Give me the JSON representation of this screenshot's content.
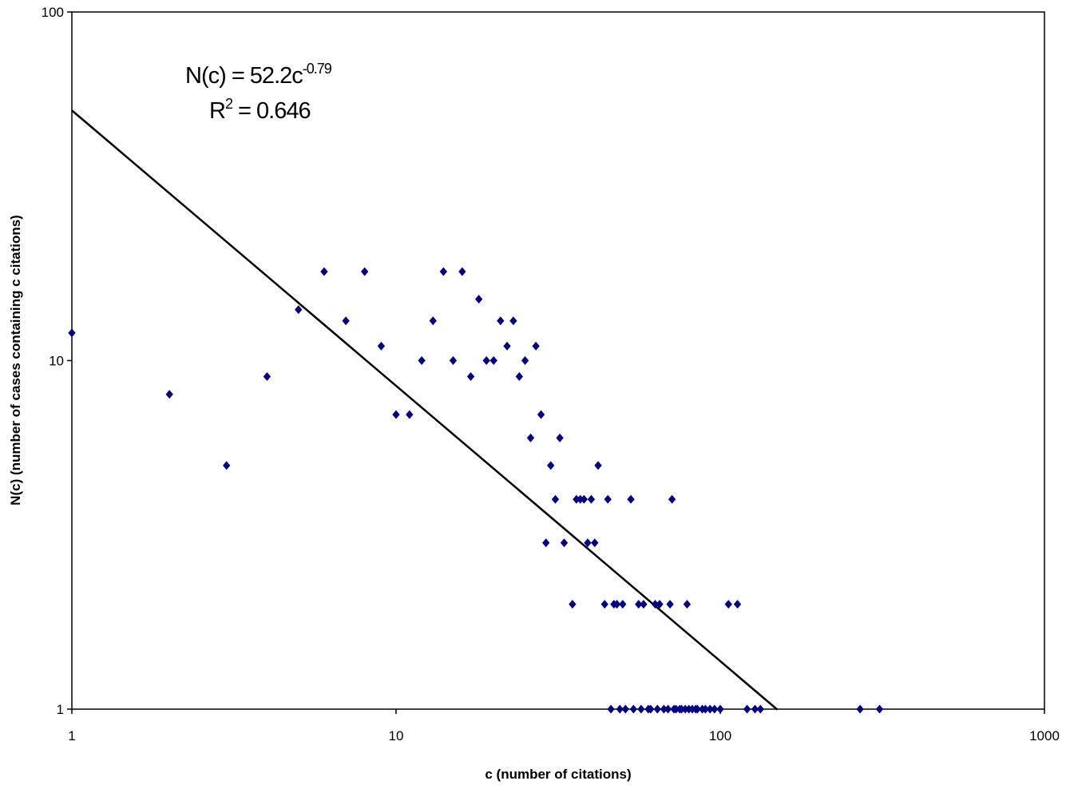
{
  "chart_data": {
    "type": "scatter",
    "x_scale": "log",
    "y_scale": "log",
    "xlim": [
      1,
      1000
    ],
    "ylim": [
      1,
      100
    ],
    "xticks": [
      1,
      10,
      100,
      1000
    ],
    "yticks": [
      1,
      10,
      100
    ],
    "xtick_labels": [
      "1",
      "10",
      "100",
      "1000"
    ],
    "ytick_labels": [
      "1",
      "10",
      "100"
    ],
    "xlabel": "c (number of citations)",
    "ylabel": "N(c) (number of cases containing c citations)",
    "grid": false,
    "legend": "none",
    "marker_color": "#000080",
    "trendline_color": "#000000",
    "annotation": {
      "equation_prefix": "N(c) = 52.2c",
      "equation_exponent": "-0.79",
      "r2_prefix": "R",
      "r2_superscript": "2",
      "r2_suffix": " = 0.646"
    },
    "trendline": {
      "type": "power",
      "coefficient": 52.2,
      "exponent": -0.79,
      "x_range": [
        1,
        150
      ]
    },
    "series": [
      {
        "points": [
          [
            1,
            12
          ],
          [
            2,
            8
          ],
          [
            3,
            5
          ],
          [
            4,
            9
          ],
          [
            5,
            14
          ],
          [
            6,
            18
          ],
          [
            7,
            13
          ],
          [
            8,
            18
          ],
          [
            9,
            11
          ],
          [
            10,
            7
          ],
          [
            11,
            7
          ],
          [
            12,
            10
          ],
          [
            13,
            13
          ],
          [
            14,
            18
          ],
          [
            15,
            10
          ],
          [
            16,
            18
          ],
          [
            17,
            9
          ],
          [
            18,
            15
          ],
          [
            19,
            10
          ],
          [
            20,
            10
          ],
          [
            21,
            13
          ],
          [
            22,
            11
          ],
          [
            23,
            13
          ],
          [
            24,
            9
          ],
          [
            25,
            10
          ],
          [
            26,
            6
          ],
          [
            27,
            11
          ],
          [
            28,
            7
          ],
          [
            29,
            3
          ],
          [
            30,
            5
          ],
          [
            31,
            4
          ],
          [
            32,
            6
          ],
          [
            33,
            3
          ],
          [
            35,
            2
          ],
          [
            36,
            4
          ],
          [
            37,
            4
          ],
          [
            38,
            4
          ],
          [
            39,
            3
          ],
          [
            40,
            4
          ],
          [
            41,
            3
          ],
          [
            42,
            5
          ],
          [
            44,
            2
          ],
          [
            45,
            4
          ],
          [
            46,
            1
          ],
          [
            47,
            2
          ],
          [
            48,
            2
          ],
          [
            49,
            1
          ],
          [
            50,
            2
          ],
          [
            51,
            1
          ],
          [
            53,
            4
          ],
          [
            54,
            1
          ],
          [
            56,
            2
          ],
          [
            57,
            1
          ],
          [
            58,
            2
          ],
          [
            60,
            1
          ],
          [
            61,
            1
          ],
          [
            63,
            2
          ],
          [
            64,
            1
          ],
          [
            65,
            2
          ],
          [
            67,
            1
          ],
          [
            69,
            1
          ],
          [
            70,
            2
          ],
          [
            71,
            4
          ],
          [
            72,
            1
          ],
          [
            73,
            1
          ],
          [
            75,
            1
          ],
          [
            76,
            1
          ],
          [
            78,
            1
          ],
          [
            79,
            2
          ],
          [
            80,
            1
          ],
          [
            82,
            1
          ],
          [
            84,
            1
          ],
          [
            85,
            1
          ],
          [
            88,
            1
          ],
          [
            90,
            1
          ],
          [
            93,
            1
          ],
          [
            96,
            1
          ],
          [
            100,
            1
          ],
          [
            106,
            2
          ],
          [
            113,
            2
          ],
          [
            121,
            1
          ],
          [
            128,
            1
          ],
          [
            133,
            1
          ],
          [
            270,
            1
          ],
          [
            310,
            1
          ]
        ]
      }
    ]
  }
}
